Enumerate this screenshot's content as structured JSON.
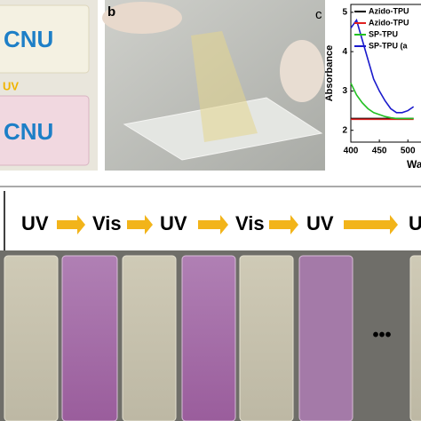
{
  "panel_a": {
    "logo_top": "CNU",
    "uv_label": "UV",
    "logo_bottom": "CNU"
  },
  "panel_b": {
    "label": "b"
  },
  "panel_c": {
    "label": "c"
  },
  "chart_data": {
    "type": "line",
    "y_label": "Absorbance",
    "x_label": "Wa",
    "x": [
      400,
      410,
      420,
      430,
      440,
      450,
      460,
      470,
      480,
      490,
      500,
      510
    ],
    "series": [
      {
        "name": "Azido-TPU",
        "color": "#000000",
        "values": [
          2.3,
          2.3,
          2.3,
          2.3,
          2.3,
          2.3,
          2.3,
          2.3,
          2.3,
          2.3,
          2.3,
          2.3
        ]
      },
      {
        "name": "Azido-TPU",
        "color": "#e02020",
        "values": [
          2.28,
          2.28,
          2.28,
          2.28,
          2.28,
          2.28,
          2.28,
          2.28,
          2.28,
          2.28,
          2.28,
          2.28
        ]
      },
      {
        "name": "SP-TPU",
        "color": "#22c022",
        "values": [
          3.2,
          2.9,
          2.7,
          2.55,
          2.45,
          2.4,
          2.35,
          2.32,
          2.3,
          2.3,
          2.3,
          2.3
        ]
      },
      {
        "name": "SP-TPU (a",
        "color": "#1a1acc",
        "values": [
          4.6,
          4.8,
          4.3,
          3.8,
          3.3,
          3.0,
          2.75,
          2.55,
          2.45,
          2.45,
          2.5,
          2.6
        ]
      }
    ],
    "xlim": [
      400,
      523
    ],
    "ylim": [
      1.7,
      5.2
    ],
    "xticks": [
      400,
      450,
      500
    ],
    "yticks": [
      2,
      3,
      4,
      5
    ]
  },
  "sequence": [
    "UV",
    "Vis",
    "UV",
    "Vis",
    "UV",
    "U"
  ],
  "ellipsis": "•••"
}
